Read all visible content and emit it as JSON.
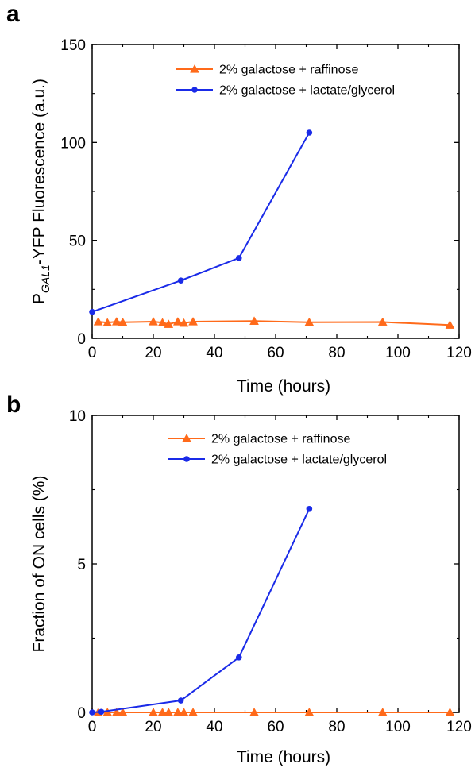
{
  "chart_data": [
    {
      "type": "line",
      "panel_label": "a",
      "ylabel_main": "P",
      "ylabel_sub": "GAL1",
      "ylabel_rest": "-YFP Fluorescence (a.u.)",
      "xlabel": "Time (hours)",
      "xlim": [
        0,
        120
      ],
      "ylim": [
        0,
        150
      ],
      "xticks": [
        "0",
        "20",
        "40",
        "60",
        "80",
        "100",
        "120"
      ],
      "yticks": [
        "0",
        "50",
        "100",
        "150"
      ],
      "legend_position": "top-center",
      "series": [
        {
          "name": "2% galactose + raffinose",
          "color": "#ff6a1a",
          "marker": "triangle",
          "x": [
            2,
            5,
            8,
            10,
            20,
            23,
            25,
            28,
            30,
            33,
            53,
            71,
            95,
            117
          ],
          "y": [
            8.5,
            8,
            8.5,
            8.2,
            8.5,
            8,
            7.2,
            8.5,
            7.8,
            8.5,
            8.8,
            8.2,
            8.3,
            6.8
          ]
        },
        {
          "name": "2% galactose + lactate/glycerol",
          "color": "#1a2be8",
          "marker": "circle",
          "x": [
            0,
            29,
            48,
            71
          ],
          "y": [
            13.5,
            29.5,
            41,
            105
          ]
        }
      ]
    },
    {
      "type": "line",
      "panel_label": "b",
      "ylabel": "Fraction of ON cells (%)",
      "xlabel": "Time (hours)",
      "xlim": [
        0,
        120
      ],
      "ylim": [
        0,
        10
      ],
      "xticks": [
        "0",
        "20",
        "40",
        "60",
        "80",
        "100",
        "120"
      ],
      "yticks": [
        "0",
        "5",
        "10"
      ],
      "legend_position": "top-center",
      "series": [
        {
          "name": "2% galactose + raffinose",
          "color": "#ff6a1a",
          "marker": "triangle",
          "x": [
            2,
            5,
            8,
            10,
            20,
            23,
            25,
            28,
            30,
            33,
            53,
            71,
            95,
            117
          ],
          "y": [
            0,
            0,
            0,
            0,
            0,
            0,
            0,
            0,
            0,
            0,
            0,
            0,
            0,
            0
          ]
        },
        {
          "name": "2% galactose + lactate/glycerol",
          "color": "#1a2be8",
          "marker": "circle",
          "x": [
            0,
            3,
            29,
            48,
            71
          ],
          "y": [
            0,
            0.02,
            0.4,
            1.85,
            6.85
          ]
        }
      ]
    }
  ]
}
